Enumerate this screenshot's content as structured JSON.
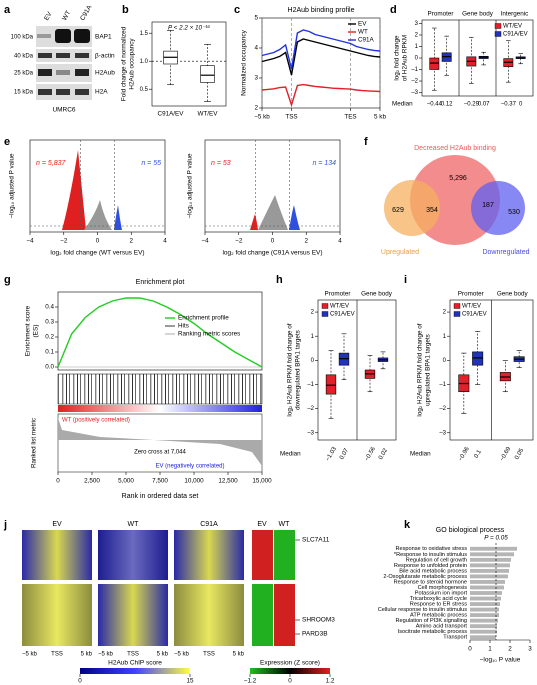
{
  "panels": {
    "a": {
      "label": "a",
      "lanes": [
        "EV",
        "WT",
        "C91A"
      ],
      "markers": [
        "100 kDa",
        "40 kDa",
        "25 kDa",
        "15 kDa"
      ],
      "bands": [
        "BAP1",
        "β-actin",
        "H2Aub",
        "H2A"
      ],
      "cell_line": "UMRC6"
    },
    "b": {
      "label": "b",
      "type": "box",
      "ylabel": [
        "Fold change of normalized",
        "H2Aub occupancy"
      ],
      "annotation": "P < 2.2 × 10⁻¹⁶",
      "categories": [
        "C91A/EV",
        "WT/EV"
      ],
      "ylim": [
        0.2,
        1.7
      ],
      "yticks": [
        0.5,
        {
          "value": 1,
          "label": "1.0"
        },
        1.5
      ],
      "ref": 1,
      "series": [
        {
          "color": "#ffffff",
          "lo": [
            0.58,
            0.28
          ],
          "q1": [
            0.95,
            0.62
          ],
          "med": [
            1.07,
            0.75
          ],
          "q3": [
            1.18,
            0.92
          ],
          "hi": [
            1.55,
            1.3
          ]
        }
      ]
    },
    "c": {
      "label": "c",
      "type": "line",
      "title": "H2Aub binding profile",
      "ylabel": "Normalized occupancy",
      "xlim": [
        0,
        20
      ],
      "xticks": [
        {
          "value": 0,
          "label": "−5 kb"
        },
        {
          "value": 5,
          "label": "TSS"
        },
        {
          "value": 15,
          "label": "TES"
        },
        {
          "value": 20,
          "label": "5 kb"
        }
      ],
      "ylim": [
        2,
        5
      ],
      "yticks": [
        2,
        3,
        4,
        5
      ],
      "x": [
        0,
        1,
        2,
        3,
        4,
        5,
        6,
        7,
        8,
        9,
        10,
        11,
        12,
        13,
        14,
        15,
        16,
        17,
        18,
        19,
        20
      ],
      "series": [
        {
          "name": "EV",
          "color": "#000000",
          "values": [
            3.55,
            3.6,
            3.65,
            3.72,
            3.85,
            3.1,
            4.2,
            4.3,
            4.25,
            4.2,
            4.15,
            4.1,
            4.05,
            4.0,
            3.95,
            3.9,
            3.85,
            3.8,
            3.75,
            3.72,
            3.7
          ]
        },
        {
          "name": "WT",
          "color": "#e0202a",
          "values": [
            2.6,
            2.62,
            2.64,
            2.68,
            2.7,
            2.1,
            2.75,
            2.78,
            2.75,
            2.72,
            2.7,
            2.68,
            2.66,
            2.65,
            2.64,
            2.63,
            2.6,
            2.58,
            2.57,
            2.56,
            2.55
          ]
        },
        {
          "name": "C91A",
          "color": "#2233dd",
          "values": [
            3.75,
            3.8,
            3.85,
            3.95,
            4.1,
            3.3,
            4.5,
            4.6,
            4.55,
            4.45,
            4.4,
            4.35,
            4.3,
            4.25,
            4.2,
            4.15,
            4.05,
            4.0,
            3.95,
            3.92,
            3.9
          ]
        }
      ]
    },
    "d": {
      "label": "d",
      "type": "box",
      "ylabel": [
        "log₂ fold change",
        "of H2Aub RPKM"
      ],
      "median_label": "Median",
      "categories": [
        "Promoter",
        "Gene body",
        "Intergenic"
      ],
      "ylim": [
        -3.3,
        3.3
      ],
      "yticks": [
        {
          "value": -3,
          "label": "–3"
        },
        {
          "value": -2,
          "label": "–2"
        },
        {
          "value": -1,
          "label": "–1"
        },
        0,
        1,
        2,
        3
      ],
      "series": [
        {
          "name": "WT/EV",
          "color": "#e0202a",
          "lo": [
            -2.8,
            -2.2,
            -2.1
          ],
          "q1": [
            -1.0,
            -0.7,
            -0.75
          ],
          "med": [
            -0.44,
            -0.29,
            -0.37
          ],
          "q3": [
            0.0,
            0.1,
            -0.05
          ],
          "hi": [
            2.6,
            1.8,
            1.5
          ],
          "value_labels": [
            "−0.44",
            "−0.29",
            "−0.37"
          ]
        },
        {
          "name": "C91A/EV",
          "color": "#2233bb",
          "lo": [
            -1.5,
            -0.6,
            -0.5
          ],
          "q1": [
            -0.3,
            -0.05,
            -0.05
          ],
          "med": [
            0.12,
            0.07,
            0
          ],
          "q3": [
            0.45,
            0.15,
            0.1
          ],
          "hi": [
            1.9,
            0.5,
            0.4
          ],
          "value_labels": [
            "0.12",
            "0.07",
            "0"
          ]
        }
      ]
    },
    "e": {
      "label": "e",
      "ylabel": "−log₁₀ adjusted P value",
      "xlim": [
        -4,
        4
      ],
      "xticks": [
        {
          "value": -4,
          "label": "−4"
        },
        {
          "value": -2,
          "label": "−2"
        },
        0,
        2,
        4
      ],
      "plots": [
        {
          "xlabel": "log₂ fold change (WT versus EV)",
          "left_count": "n = 5,837",
          "right_count": "n = 55"
        },
        {
          "xlabel": "log₂ fold change (C91A versus EV)",
          "left_count": "n = 53",
          "right_count": "n = 134"
        }
      ]
    },
    "f": {
      "label": "f",
      "title": "Decreased H2Aub binding",
      "decreased_only": "5,296",
      "up_only": "629",
      "up_and_decreased": "354",
      "down_and_decreased": "187",
      "down_only": "530",
      "up_label": "Upregulated",
      "down_label": "Downregulated"
    },
    "g": {
      "label": "g",
      "type": "line",
      "title": "Enrichment plot",
      "ylabel": [
        "Enrichment score",
        "(ES)"
      ],
      "legend": [
        "Enrichment profile",
        "Hits",
        "Ranking metric scores"
      ],
      "positive_label": "WT (positively correlated)",
      "zero_cross": "Zero cross at 7,044",
      "negative_label": "EV (negatively correlated)",
      "metric_label": "Ranked list metric",
      "xlabel": "Rank in ordered data set",
      "xlim": [
        0,
        15000
      ],
      "xticks": [
        0,
        {
          "value": 2500,
          "label": "2,500"
        },
        {
          "value": 5000,
          "label": "5,000"
        },
        {
          "value": 7500,
          "label": "7,500"
        },
        {
          "value": 10000,
          "label": "10,000"
        },
        {
          "value": 12500,
          "label": "12,500"
        },
        {
          "value": 15000,
          "label": "15,000"
        }
      ],
      "ylim": [
        -0.02,
        0.5
      ],
      "yticks": [
        {
          "value": 0,
          "label": "0.0"
        },
        0.1,
        0.2,
        0.3,
        0.4
      ],
      "x": [
        0,
        1000,
        2000,
        3000,
        4000,
        5000,
        6000,
        7000,
        8000,
        9000,
        10000,
        11000,
        12000,
        13000,
        14000,
        15000
      ],
      "values": [
        0,
        0.22,
        0.33,
        0.4,
        0.44,
        0.46,
        0.46,
        0.44,
        0.4,
        0.35,
        0.29,
        0.22,
        0.16,
        0.1,
        0.05,
        0
      ],
      "color": "#22cc22"
    },
    "h": {
      "label": "h",
      "type": "box",
      "ylabel": [
        "log₂ H2Aub RPKM fold change of",
        "downregulated BPA1 targets"
      ],
      "median_label": "Median",
      "categories": [
        "Promoter",
        "Gene body"
      ],
      "ylim": [
        -3.3,
        2.5
      ],
      "yticks": [
        {
          "value": -3,
          "label": "–3"
        },
        {
          "value": -2,
          "label": "–2"
        },
        {
          "value": -1,
          "label": "–1"
        },
        0,
        1,
        2
      ],
      "series": [
        {
          "name": "WT/EV",
          "color": "#e0202a",
          "lo": [
            -2.4,
            -1.3
          ],
          "q1": [
            -1.4,
            -0.75
          ],
          "med": [
            -1.03,
            -0.56
          ],
          "q3": [
            -0.6,
            -0.4
          ],
          "hi": [
            0.4,
            0.2
          ],
          "value_labels": [
            "−1.03",
            "−0.56"
          ]
        },
        {
          "name": "C91A/EV",
          "color": "#2233bb",
          "lo": [
            -0.8,
            -0.35
          ],
          "q1": [
            -0.2,
            -0.05
          ],
          "med": [
            0.07,
            0.02
          ],
          "q3": [
            0.3,
            0.1
          ],
          "hi": [
            1.1,
            0.35
          ],
          "value_labels": [
            "0.07",
            "0.02"
          ]
        }
      ]
    },
    "i": {
      "label": "i",
      "type": "box",
      "ylabel": [
        "log₂ H2Aub RPKM fold change of",
        "upregulated BPA1 targets"
      ],
      "median_label": "Median",
      "categories": [
        "Promoter",
        "Gene body"
      ],
      "ylim": [
        -3.3,
        2.5
      ],
      "yticks": [
        {
          "value": -3,
          "label": "–3"
        },
        {
          "value": -2,
          "label": "–2"
        },
        {
          "value": -1,
          "label": "–1"
        },
        0,
        1,
        2
      ],
      "series": [
        {
          "name": "WT/EV",
          "color": "#e0202a",
          "lo": [
            -2.2,
            -1.3
          ],
          "q1": [
            -1.3,
            -0.85
          ],
          "med": [
            -0.96,
            -0.69
          ],
          "q3": [
            -0.6,
            -0.5
          ],
          "hi": [
            0.3,
            0
          ],
          "value_labels": [
            "−0.96",
            "−0.69"
          ]
        },
        {
          "name": "C91A/EV",
          "color": "#2233bb",
          "lo": [
            -1,
            -0.3
          ],
          "q1": [
            -0.2,
            -0.05
          ],
          "med": [
            0.1,
            0.05
          ],
          "q3": [
            0.35,
            0.15
          ],
          "hi": [
            1.2,
            0.4
          ],
          "value_labels": [
            "0.1",
            "0.05"
          ]
        }
      ]
    },
    "j": {
      "label": "j",
      "chip_columns": [
        "EV",
        "WT",
        "C91A"
      ],
      "expression_columns": [
        "EV",
        "WT"
      ],
      "genes": [
        "SLC7A11",
        "SHROOM3",
        "PARD3B"
      ],
      "xticks": [
        "−5 kb",
        "TSS",
        "5 kb"
      ],
      "chip_colorbar": {
        "title": "H2Aub ChIP score",
        "lim": [
          0,
          15
        ],
        "ticks": [
          0,
          15
        ]
      },
      "expression_colorbar": {
        "title": "Expression (Z score)",
        "lim": [
          -1.2,
          1.2
        ],
        "ticks": [
          {
            "value": -1.2,
            "label": "−1.2"
          },
          0,
          1.2
        ]
      }
    },
    "k": {
      "label": "k",
      "type": "bar",
      "title": "GO biological process",
      "ref_label": "P = 0.05",
      "ref": 1.3,
      "xlabel": "−log₁₀ P value",
      "xlim": [
        0,
        3
      ],
      "xticks": [
        0,
        1,
        2,
        3
      ],
      "color": "#b5b5b5",
      "categories": [
        "Response to oxidative stress",
        "*Response to insulin stimulus",
        "Regulation of cell growth",
        "Response to unfolded protein",
        "Bile acid metabolic process",
        "2-Oxoglutarate metabolic process",
        "Response to steroid hormone",
        "Cell morphogenesis",
        "Potassium ion import",
        "Tricarboxylic acid cycle",
        "Response to ER stress",
        "Cellular response to insulin stimulus",
        "ATP metabolic process",
        "Regulation of PI3K signalling",
        "Amino acid transport",
        "Isocitrate metabolic process",
        "Transport"
      ],
      "values": [
        2.35,
        2.2,
        2.05,
        2.0,
        1.95,
        1.9,
        1.75,
        1.7,
        1.6,
        1.55,
        1.5,
        1.45,
        1.45,
        1.4,
        1.35,
        1.35,
        1.3
      ]
    }
  }
}
